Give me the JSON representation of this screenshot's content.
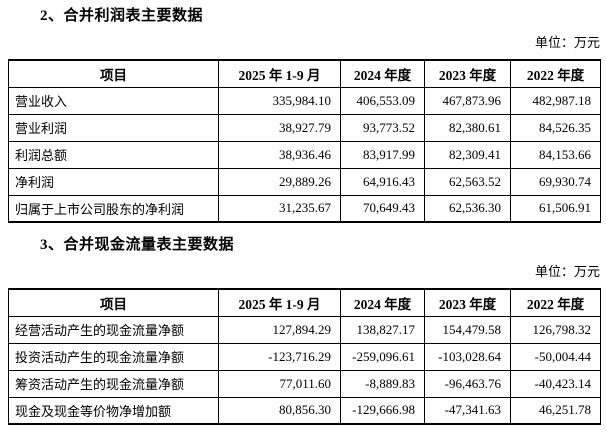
{
  "sections": [
    {
      "title": "2、合并利润表主要数据",
      "unit_label": "单位：万元",
      "table": {
        "headers": [
          "项目",
          "2025 年 1-9 月",
          "2024 年度",
          "2023 年度",
          "2022 年度"
        ],
        "rows": [
          [
            "营业收入",
            "335,984.10",
            "406,553.09",
            "467,873.96",
            "482,987.18"
          ],
          [
            "营业利润",
            "38,927.79",
            "93,773.52",
            "82,380.61",
            "84,526.35"
          ],
          [
            "利润总额",
            "38,936.46",
            "83,917.99",
            "82,309.41",
            "84,153.66"
          ],
          [
            "净利润",
            "29,889.26",
            "64,916.43",
            "62,563.52",
            "69,930.74"
          ],
          [
            "归属于上市公司股东的净利润",
            "31,235.67",
            "70,649.43",
            "62,536.30",
            "61,506.91"
          ]
        ]
      }
    },
    {
      "title": "3、合并现金流量表主要数据",
      "unit_label": "单位：万元",
      "table": {
        "headers": [
          "项目",
          "2025 年 1-9 月",
          "2024 年度",
          "2023 年度",
          "2022 年度"
        ],
        "rows": [
          [
            "经营活动产生的现金流量净额",
            "127,894.29",
            "138,827.17",
            "154,479.58",
            "126,798.32"
          ],
          [
            "投资活动产生的现金流量净额",
            "-123,716.29",
            "-259,096.61",
            "-103,028.64",
            "-50,004.44"
          ],
          [
            "筹资活动产生的现金流量净额",
            "77,011.60",
            "-8,889.83",
            "-96,463.76",
            "-40,423.14"
          ],
          [
            "现金及现金等价物净增加额",
            "80,856.30",
            "-129,666.98",
            "-47,341.63",
            "46,251.78"
          ]
        ]
      }
    }
  ]
}
